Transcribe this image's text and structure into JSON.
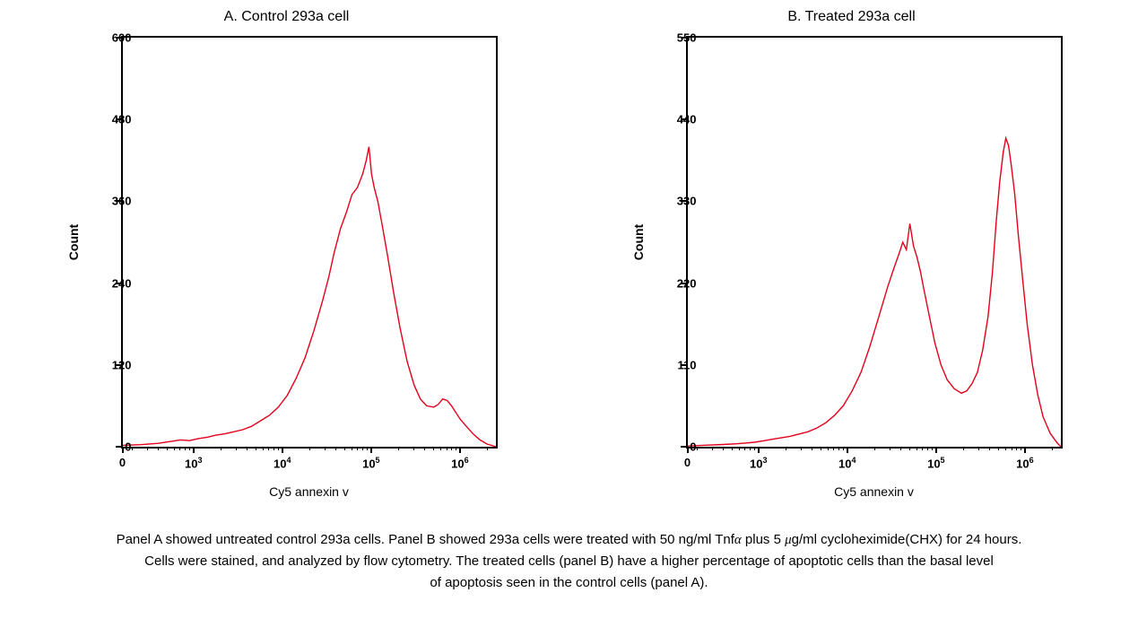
{
  "figure": {
    "background_color": "#ffffff",
    "line_color": "#e3001b",
    "line_width": 1.4,
    "border_color": "#000000",
    "border_width": 2,
    "font_family": "Segoe UI, Helvetica Neue, Arial, sans-serif",
    "title_fontsize": 16,
    "label_fontsize": 14,
    "tick_fontsize": 13,
    "caption_fontsize": 15
  },
  "panelA": {
    "title": "A. Control 293a cell",
    "ylabel": "Count",
    "xlabel": "Cy5 annexin v",
    "ylim": [
      0,
      600
    ],
    "yticks": [
      0,
      120,
      240,
      360,
      480,
      600
    ],
    "xscale": "log",
    "xlim_exp": [
      2.2,
      6.4
    ],
    "xticks": [
      {
        "exp": 2.2,
        "label": "0"
      },
      {
        "exp": 3.0,
        "label_html": "10<sup>3</sup>"
      },
      {
        "exp": 4.0,
        "label_html": "10<sup>4</sup>"
      },
      {
        "exp": 5.0,
        "label_html": "10<sup>5</sup>"
      },
      {
        "exp": 6.0,
        "label_html": "10<sup>6</sup>"
      }
    ],
    "histogram": {
      "type": "line",
      "x_exp": [
        2.2,
        2.4,
        2.6,
        2.75,
        2.85,
        2.95,
        3.05,
        3.15,
        3.25,
        3.35,
        3.45,
        3.55,
        3.65,
        3.75,
        3.85,
        3.95,
        4.05,
        4.15,
        4.25,
        4.35,
        4.45,
        4.52,
        4.58,
        4.65,
        4.72,
        4.78,
        4.84,
        4.9,
        4.94,
        4.97,
        5.0,
        5.03,
        5.07,
        5.12,
        5.18,
        5.25,
        5.32,
        5.4,
        5.48,
        5.55,
        5.62,
        5.7,
        5.75,
        5.8,
        5.85,
        5.9,
        5.95,
        6.0,
        6.08,
        6.15,
        6.22,
        6.3,
        6.4
      ],
      "y": [
        2,
        3,
        5,
        8,
        10,
        9,
        12,
        14,
        17,
        19,
        22,
        25,
        30,
        38,
        46,
        58,
        75,
        100,
        130,
        170,
        215,
        250,
        285,
        320,
        345,
        370,
        380,
        400,
        420,
        440,
        400,
        380,
        360,
        325,
        280,
        225,
        175,
        125,
        90,
        70,
        60,
        58,
        62,
        70,
        68,
        60,
        50,
        40,
        28,
        18,
        10,
        4,
        0
      ]
    }
  },
  "panelB": {
    "title": "B.  Treated 293a cell",
    "ylabel": "Count",
    "xlabel": "Cy5 annexin v",
    "ylim": [
      0,
      550
    ],
    "yticks": [
      0,
      110,
      220,
      330,
      440,
      550
    ],
    "xscale": "log",
    "xlim_exp": [
      2.2,
      6.4
    ],
    "xticks": [
      {
        "exp": 2.2,
        "label": "0"
      },
      {
        "exp": 3.0,
        "label_html": "10<sup>3</sup>"
      },
      {
        "exp": 4.0,
        "label_html": "10<sup>4</sup>"
      },
      {
        "exp": 5.0,
        "label_html": "10<sup>5</sup>"
      },
      {
        "exp": 6.0,
        "label_html": "10<sup>6</sup>"
      }
    ],
    "histogram": {
      "type": "line",
      "x_exp": [
        2.2,
        2.4,
        2.6,
        2.75,
        2.85,
        2.95,
        3.05,
        3.15,
        3.25,
        3.35,
        3.45,
        3.55,
        3.65,
        3.75,
        3.85,
        3.95,
        4.05,
        4.15,
        4.25,
        4.35,
        4.45,
        4.52,
        4.58,
        4.62,
        4.66,
        4.7,
        4.74,
        4.78,
        4.82,
        4.86,
        4.92,
        4.98,
        5.05,
        5.12,
        5.2,
        5.28,
        5.34,
        5.4,
        5.46,
        5.52,
        5.58,
        5.63,
        5.67,
        5.71,
        5.75,
        5.78,
        5.81,
        5.84,
        5.88,
        5.92,
        5.97,
        6.02,
        6.08,
        6.14,
        6.2,
        6.28,
        6.36,
        6.4
      ],
      "y": [
        1,
        2,
        3,
        4,
        5,
        6,
        8,
        10,
        12,
        14,
        17,
        20,
        25,
        32,
        42,
        55,
        75,
        100,
        135,
        175,
        215,
        240,
        260,
        275,
        265,
        300,
        270,
        255,
        235,
        210,
        175,
        140,
        110,
        90,
        78,
        72,
        75,
        85,
        100,
        130,
        175,
        235,
        300,
        355,
        395,
        415,
        405,
        380,
        340,
        285,
        225,
        165,
        110,
        70,
        40,
        18,
        5,
        0
      ]
    }
  },
  "caption": {
    "line1_a": "Panel A showed untreated control 293a cells. Panel B showed 293a cells were treated with 50 ng/ml Tnf",
    "alpha": "α",
    "line1_b": " plus 5 ",
    "mu": "μ",
    "line1_c": "g/ml cycloheximide(CHX)  for 24 hours.",
    "line2": "Cells were stained, and analyzed by flow cytometry. The treated cells (panel B) have a higher percentage of apoptotic cells than the basal level",
    "line3": "of apoptosis seen in the control cells (panel A)."
  }
}
